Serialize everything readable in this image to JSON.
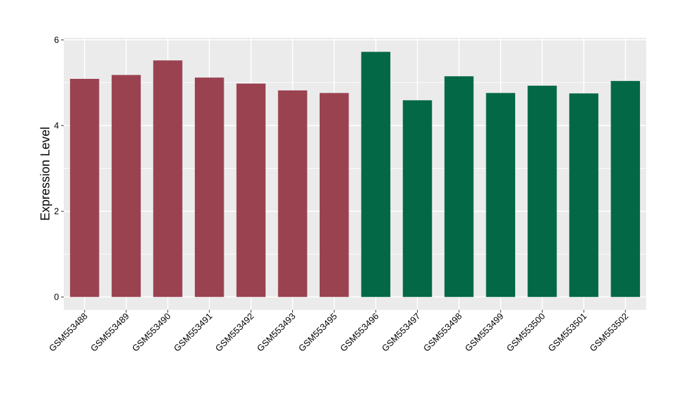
{
  "chart_data": {
    "type": "bar",
    "title": "",
    "xlabel": "",
    "ylabel": "Expression Level",
    "ylim": [
      -0.3,
      6.05
    ],
    "yticks": [
      0,
      2,
      4,
      6
    ],
    "ytick_labels": [
      "0",
      "2",
      "4",
      "6"
    ],
    "grid": true,
    "legend": "none",
    "categories": [
      "GSM553488",
      "GSM553489",
      "GSM553490",
      "GSM553491",
      "GSM553492",
      "GSM553493",
      "GSM553495",
      "GSM553496",
      "GSM553497",
      "GSM553498",
      "GSM553499",
      "GSM553500",
      "GSM553501",
      "GSM553502"
    ],
    "values": [
      5.09,
      5.18,
      5.52,
      5.12,
      4.98,
      4.82,
      4.76,
      5.72,
      4.59,
      5.15,
      4.76,
      4.93,
      4.75,
      5.04
    ],
    "bar_colors": [
      "#9b4251",
      "#9b4251",
      "#9b4251",
      "#9b4251",
      "#9b4251",
      "#9b4251",
      "#9b4251",
      "#036845",
      "#036845",
      "#036845",
      "#036845",
      "#036845",
      "#036845",
      "#036845"
    ],
    "panel_background": "#ebebeb",
    "grid_color": "#ffffff"
  }
}
